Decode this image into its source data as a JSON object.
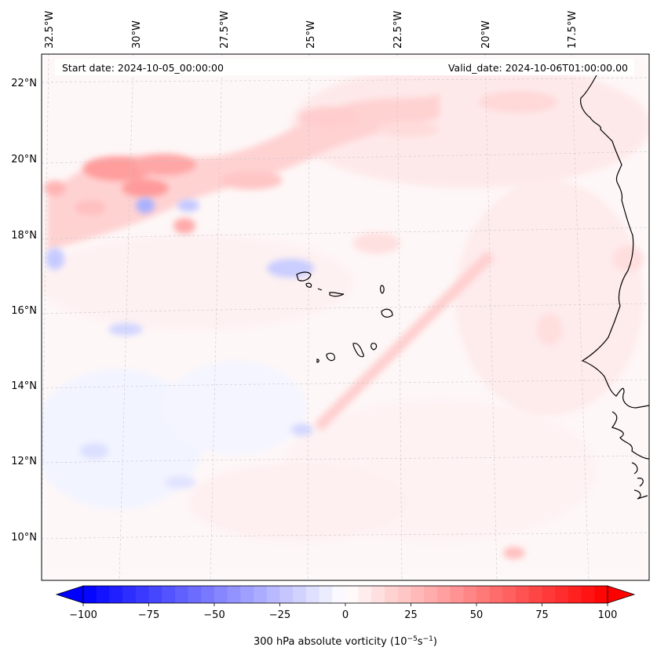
{
  "map": {
    "top_lon_labels": [
      "32.5°W",
      "30°W",
      "27.5°W",
      "25°W",
      "22.5°W",
      "20°W",
      "17.5°W"
    ],
    "left_lat_labels": [
      "22°N",
      "20°N",
      "18°N",
      "16°N",
      "14°N",
      "12°N",
      "10°N"
    ],
    "start_date": "Start date: 2024-10-05_00:00:00",
    "valid_date": "Valid_date: 2024-10-06T01:00:00.00",
    "gridlines": true,
    "coastline_color": "#000000"
  },
  "colorbar": {
    "ticks": [
      "−100",
      "−75",
      "−50",
      "−25",
      "0",
      "25",
      "50",
      "75",
      "100"
    ],
    "min": -100,
    "max": 100,
    "levels": 41,
    "cmap": "bwr",
    "label": "300 hPa absolute vorticity (10<sup>−5</sup>s<sup>−1</sup>)"
  }
}
